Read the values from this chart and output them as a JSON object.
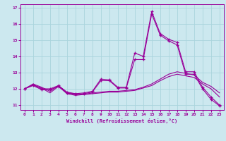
{
  "xlabel": "Windchill (Refroidissement éolien,°C)",
  "background_color": "#cce8ef",
  "line_color": "#990099",
  "grid_color": "#aad4dd",
  "xlim": [
    -0.5,
    23.5
  ],
  "ylim": [
    10.7,
    17.2
  ],
  "yticks": [
    11,
    12,
    13,
    14,
    15,
    16,
    17
  ],
  "xticks": [
    0,
    1,
    2,
    3,
    4,
    5,
    6,
    7,
    8,
    9,
    10,
    11,
    12,
    13,
    14,
    15,
    16,
    17,
    18,
    19,
    20,
    21,
    22,
    23
  ],
  "series": [
    {
      "x": [
        0,
        1,
        2,
        3,
        4,
        5,
        6,
        7,
        8,
        9,
        10,
        11,
        12,
        13,
        14,
        15,
        16,
        17,
        18,
        19,
        20,
        21,
        22,
        23
      ],
      "y": [
        12.0,
        12.3,
        12.1,
        11.85,
        12.2,
        11.75,
        11.7,
        11.65,
        11.75,
        11.8,
        11.85,
        11.85,
        11.9,
        11.95,
        12.1,
        12.3,
        12.6,
        12.9,
        13.05,
        12.95,
        12.85,
        12.4,
        12.15,
        11.75
      ],
      "marker": false
    },
    {
      "x": [
        0,
        1,
        2,
        3,
        4,
        5,
        6,
        7,
        8,
        9,
        10,
        11,
        12,
        13,
        14,
        15,
        16,
        17,
        18,
        19,
        20,
        21,
        22,
        23
      ],
      "y": [
        12.0,
        12.25,
        12.05,
        11.75,
        12.15,
        11.7,
        11.6,
        11.65,
        11.7,
        11.75,
        11.8,
        11.8,
        11.85,
        11.9,
        12.05,
        12.2,
        12.5,
        12.75,
        12.9,
        12.8,
        12.7,
        12.3,
        12.0,
        11.5
      ],
      "marker": false
    },
    {
      "x": [
        0,
        1,
        2,
        3,
        4,
        5,
        6,
        7,
        8,
        9,
        10,
        11,
        12,
        13,
        14,
        15,
        16,
        17,
        18,
        19,
        20,
        21,
        22,
        23
      ],
      "y": [
        12.0,
        12.25,
        12.0,
        12.0,
        12.2,
        11.8,
        11.7,
        11.75,
        11.85,
        12.6,
        12.55,
        12.1,
        12.1,
        14.2,
        14.0,
        16.75,
        15.4,
        15.05,
        14.85,
        13.05,
        13.05,
        12.1,
        11.5,
        11.0
      ],
      "marker": true
    },
    {
      "x": [
        0,
        1,
        2,
        3,
        4,
        5,
        6,
        7,
        8,
        9,
        10,
        11,
        12,
        13,
        14,
        15,
        16,
        17,
        18,
        19,
        20,
        21,
        22,
        23
      ],
      "y": [
        12.0,
        12.2,
        11.95,
        11.95,
        12.15,
        11.75,
        11.65,
        11.7,
        11.8,
        12.5,
        12.5,
        12.05,
        12.05,
        13.8,
        13.8,
        16.6,
        15.3,
        14.95,
        14.7,
        12.9,
        12.9,
        12.0,
        11.35,
        10.95
      ],
      "marker": true
    }
  ]
}
